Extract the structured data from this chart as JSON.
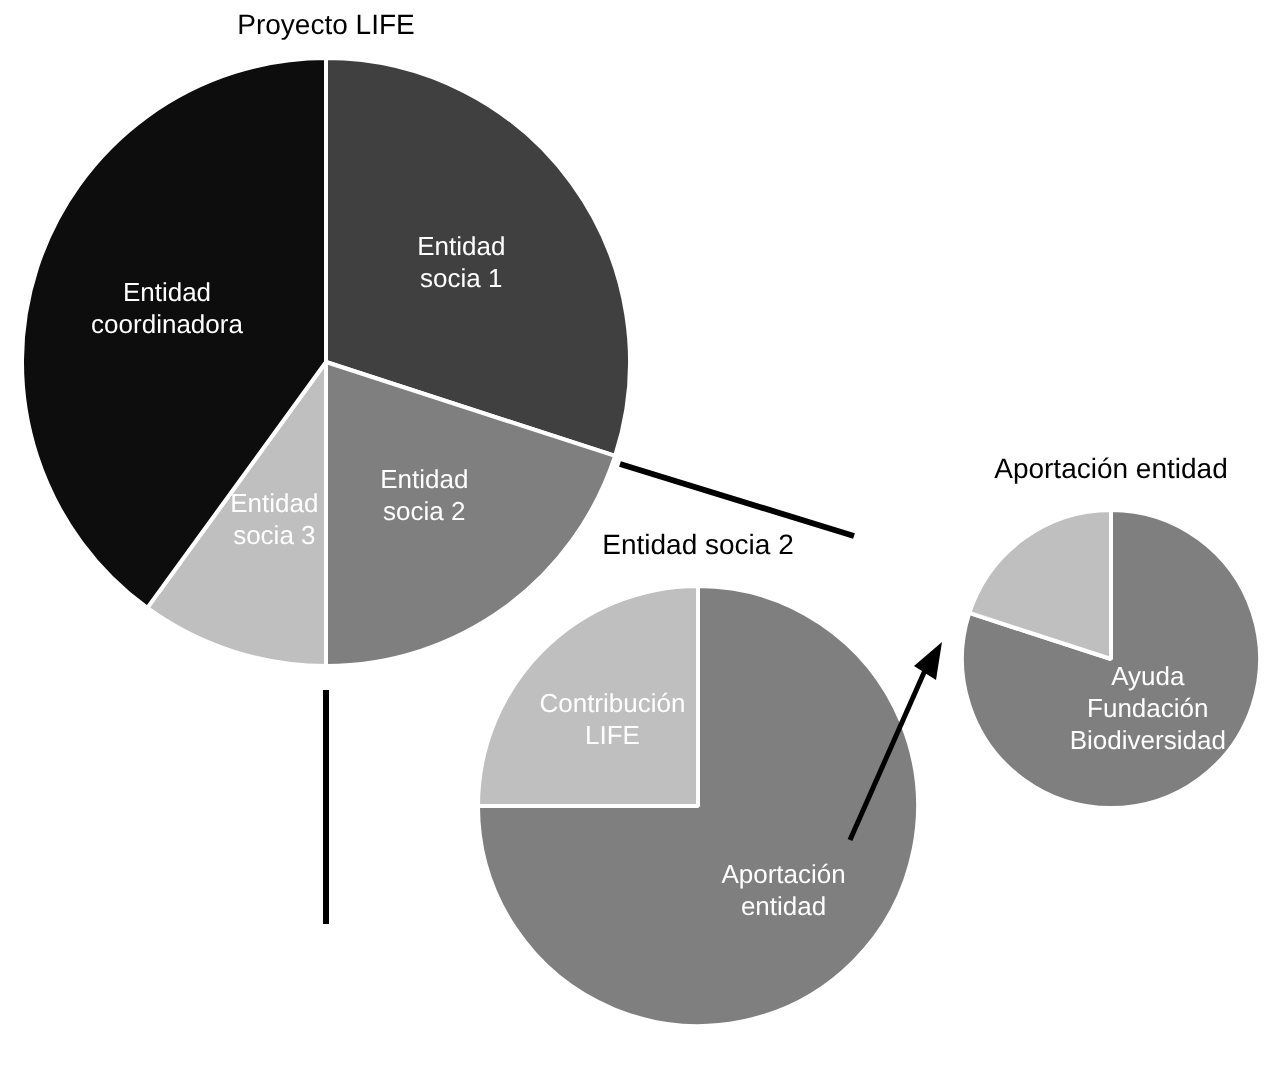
{
  "chart_data": [
    {
      "type": "pie",
      "title": "Proyecto LIFE",
      "categories": [
        "Entidad socia 1",
        "Entidad socia 2",
        "Entidad socia 3",
        "Entidad coordinadora"
      ],
      "values": [
        30,
        20,
        10,
        40
      ],
      "colors": [
        "#404040",
        "#7f7f7f",
        "#bfbfbf",
        "#0d0d0d"
      ]
    },
    {
      "type": "pie",
      "title": "Entidad socia 2",
      "categories": [
        "Aportación entidad",
        "Contribución LIFE"
      ],
      "values": [
        75,
        25
      ],
      "colors": [
        "#7f7f7f",
        "#bfbfbf"
      ]
    },
    {
      "type": "pie",
      "title": "Aportación entidad",
      "categories": [
        "Ayuda Fundación Biodiversidad",
        null
      ],
      "values": [
        80,
        20
      ],
      "colors": [
        "#7f7f7f",
        "#bfbfbf"
      ]
    }
  ]
}
